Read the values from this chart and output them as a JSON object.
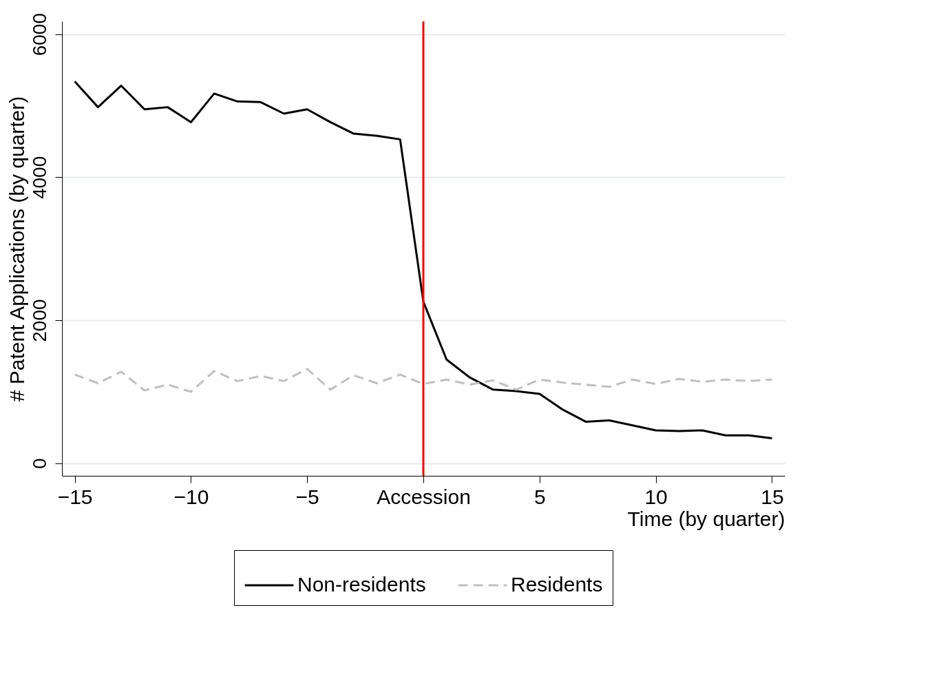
{
  "chart_data": {
    "type": "line",
    "xlabel": "Time (by quarter)",
    "ylabel": "# Patent Applications (by quarter)",
    "x": [
      -15,
      -14,
      -13,
      -12,
      -11,
      -10,
      -9,
      -8,
      -7,
      -6,
      -5,
      -4,
      -3,
      -2,
      -1,
      0,
      1,
      2,
      3,
      4,
      5,
      6,
      7,
      8,
      9,
      10,
      11,
      12,
      13,
      14,
      15
    ],
    "series": [
      {
        "name": "Non-residents",
        "color": "#000000",
        "line_style": "solid",
        "values": [
          5340,
          4980,
          5280,
          4950,
          4980,
          4770,
          5170,
          5060,
          5050,
          4890,
          4950,
          4770,
          4610,
          4580,
          4530,
          2260,
          1450,
          1200,
          1030,
          1010,
          970,
          750,
          580,
          600,
          530,
          460,
          450,
          460,
          390,
          390,
          350
        ]
      },
      {
        "name": "Residents",
        "color": "#c0c0c0",
        "line_style": "dashed",
        "values": [
          1240,
          1120,
          1280,
          1020,
          1100,
          1000,
          1290,
          1150,
          1220,
          1150,
          1320,
          1030,
          1230,
          1120,
          1240,
          1110,
          1170,
          1100,
          1160,
          1030,
          1170,
          1130,
          1100,
          1070,
          1170,
          1110,
          1180,
          1140,
          1170,
          1150,
          1170
        ]
      }
    ],
    "xlim": [
      -15.55,
      15.55
    ],
    "xticks": [
      -15,
      -10,
      -5,
      {
        "value": 0,
        "label": "Accession"
      },
      5,
      10,
      15
    ],
    "ylim": [
      -175,
      6180
    ],
    "yticks": [
      0,
      2000,
      4000,
      6000
    ],
    "ref_lines": [
      {
        "axis": "x",
        "value": 0,
        "color": "#ff0000"
      }
    ],
    "grid": "y",
    "legend": "bottom",
    "marker": "none"
  }
}
